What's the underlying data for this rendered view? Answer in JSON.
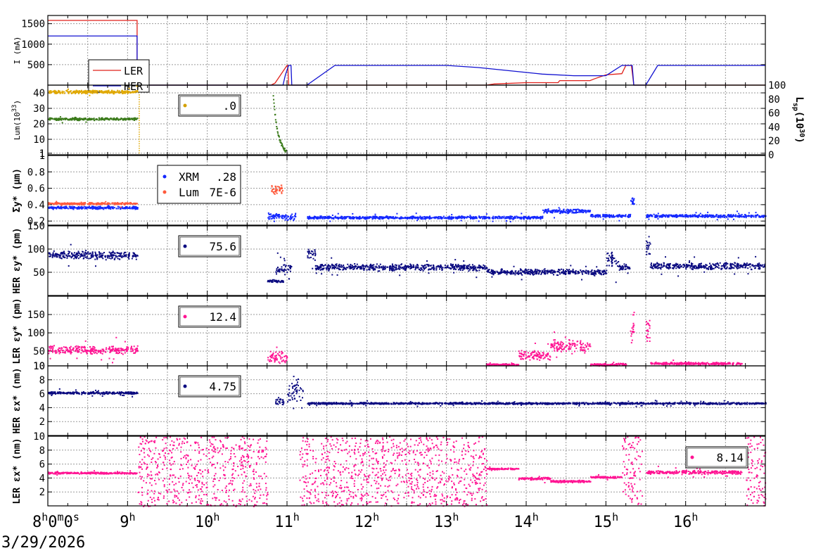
{
  "chart_data": {
    "type": "line",
    "date": "3/29/2026",
    "x_tick_labels": [
      {
        "h": 8,
        "label": "8",
        "sup": "h",
        "tail": "0",
        "tail_sup": "m",
        "tail2": "0",
        "tail2_sup": "s"
      },
      {
        "h": 9,
        "label": "9",
        "sup": "h"
      },
      {
        "h": 10,
        "label": "10",
        "sup": "h"
      },
      {
        "h": 11,
        "label": "11",
        "sup": "h"
      },
      {
        "h": 12,
        "label": "12",
        "sup": "h"
      },
      {
        "h": 13,
        "label": "13",
        "sup": "h"
      },
      {
        "h": 14,
        "label": "14",
        "sup": "h"
      },
      {
        "h": 15,
        "label": "15",
        "sup": "h"
      },
      {
        "h": 16,
        "label": "16",
        "sup": "h"
      }
    ],
    "xlim": [
      8.0,
      17.0
    ],
    "panels": [
      {
        "id": "current",
        "ylabel": "I (mA)",
        "ylim": [
          0,
          1700
        ],
        "yticks": [
          500,
          1000,
          1500
        ],
        "legend": [
          "LER",
          "HER"
        ],
        "series": [
          {
            "name": "LER",
            "color": "#e0201a",
            "style": "line",
            "points": [
              [
                8.0,
                1580
              ],
              [
                9.12,
                1580
              ],
              [
                9.12,
                300
              ],
              [
                9.14,
                0
              ],
              [
                10.8,
                0
              ],
              [
                10.85,
                50
              ],
              [
                11.0,
                480
              ],
              [
                11.01,
                480
              ],
              [
                11.02,
                0
              ],
              [
                13.5,
                0
              ],
              [
                13.6,
                30
              ],
              [
                14.0,
                60
              ],
              [
                14.4,
                60
              ],
              [
                14.42,
                110
              ],
              [
                14.8,
                110
              ],
              [
                14.85,
                150
              ],
              [
                15.0,
                250
              ],
              [
                15.2,
                280
              ],
              [
                15.25,
                480
              ],
              [
                15.32,
                480
              ],
              [
                15.35,
                0
              ],
              [
                16.0,
                0
              ],
              [
                17.0,
                0
              ]
            ]
          },
          {
            "name": "HER",
            "color": "#1010d0",
            "style": "line",
            "points": [
              [
                8.0,
                1200
              ],
              [
                9.12,
                1200
              ],
              [
                9.12,
                150
              ],
              [
                9.14,
                0
              ],
              [
                10.95,
                0
              ],
              [
                10.98,
                250
              ],
              [
                11.02,
                480
              ],
              [
                11.05,
                480
              ],
              [
                11.06,
                0
              ],
              [
                11.25,
                0
              ],
              [
                11.6,
                480
              ],
              [
                13.0,
                480
              ],
              [
                13.4,
                430
              ],
              [
                13.8,
                350
              ],
              [
                14.2,
                270
              ],
              [
                14.6,
                230
              ],
              [
                15.0,
                230
              ],
              [
                15.2,
                480
              ],
              [
                15.33,
                480
              ],
              [
                15.35,
                0
              ],
              [
                15.5,
                0
              ],
              [
                15.65,
                480
              ],
              [
                17.0,
                480
              ]
            ]
          }
        ]
      },
      {
        "id": "luminosity",
        "ylabel": "Lum(10",
        "ylabel_sup": "33",
        "ylabel_tail": ")",
        "ylim": [
          0,
          45
        ],
        "yticks": [
          1,
          10,
          20,
          30,
          40
        ],
        "right_axis": {
          "label": "L",
          "label_sub": "sp",
          "label_tail": "(10",
          "label_sup": "30",
          "label_tail2": ")",
          "ylim": [
            0,
            100
          ],
          "yticks": [
            0,
            20,
            40,
            60,
            80,
            100
          ]
        },
        "legend_value": ".0",
        "legend_color": "#d4a000",
        "series": [
          {
            "name": "lum_orange",
            "color": "#e0a800",
            "style": "band",
            "x": [
              8.0,
              9.12
            ],
            "y": 41,
            "spread": 1.2
          },
          {
            "name": "lum_green",
            "color": "#3a7a1a",
            "style": "band",
            "x": [
              8.0,
              9.12
            ],
            "y": 23.5,
            "spread": 0.9
          },
          {
            "name": "lum_drop",
            "color": "#e0a800",
            "style": "vdots",
            "x": 9.14,
            "y": [
              0,
              40
            ]
          },
          {
            "name": "lum_green_b",
            "color": "#3a7a1a",
            "style": "decay",
            "x": [
              10.82,
              10.98
            ],
            "y": [
              38,
              3
            ]
          }
        ]
      },
      {
        "id": "sigma",
        "ylabel": "Σy* (μm)",
        "ylim": [
          0.15,
          1.0
        ],
        "yticks": [
          0.2,
          0.4,
          0.6,
          0.8,
          1
        ],
        "legend": [
          {
            "label": "XRM",
            "value": ".28",
            "color": "#1428ff"
          },
          {
            "label": "Lum",
            "value": "7E-6",
            "color": "#ff5a3c"
          }
        ],
        "series": [
          {
            "name": "XRM",
            "color": "#1428ff",
            "style": "band",
            "segments": [
              [
                8.0,
                9.12,
                0.37,
                0.02
              ],
              [
                10.75,
                11.1,
                0.26,
                0.05
              ],
              [
                11.25,
                14.2,
                0.25,
                0.02
              ],
              [
                14.2,
                14.8,
                0.33,
                0.03
              ],
              [
                14.8,
                15.3,
                0.27,
                0.02
              ],
              [
                15.3,
                15.35,
                0.45,
                0.05
              ],
              [
                15.5,
                17.0,
                0.27,
                0.02
              ]
            ]
          },
          {
            "name": "Lum",
            "color": "#ff5a3c",
            "style": "band",
            "segments": [
              [
                8.0,
                9.12,
                0.42,
                0.015
              ],
              [
                10.8,
                10.95,
                0.6,
                0.07
              ]
            ]
          }
        ]
      },
      {
        "id": "her_eps_y",
        "ylabel": "HER εy* (pm)",
        "ylim": [
          0,
          150
        ],
        "yticks": [
          50,
          100,
          150
        ],
        "legend_value": "75.6",
        "legend_color": "#0a0a80",
        "series": [
          {
            "name": "HER_eps_y",
            "color": "#0a0a80",
            "style": "band",
            "segments": [
              [
                8.0,
                9.12,
                88,
                10
              ],
              [
                10.75,
                10.95,
                32,
                4
              ],
              [
                10.85,
                11.05,
                58,
                12
              ],
              [
                11.25,
                11.35,
                90,
                14
              ],
              [
                11.35,
                13.5,
                62,
                8
              ],
              [
                13.5,
                15.0,
                52,
                7
              ],
              [
                15.0,
                15.15,
                80,
                20
              ],
              [
                15.15,
                15.3,
                62,
                8
              ],
              [
                15.5,
                15.55,
                105,
                25
              ],
              [
                15.55,
                17.0,
                65,
                8
              ]
            ]
          }
        ]
      },
      {
        "id": "ler_eps_y",
        "ylabel": "LER εy* (pm)",
        "ylim": [
          10,
          200
        ],
        "yticks": [
          10,
          50,
          100,
          150
        ],
        "legend_value": "12.4",
        "legend_color": "#ff1493",
        "series": [
          {
            "name": "LER_eps_y",
            "color": "#ff1493",
            "style": "band",
            "segments": [
              [
                8.0,
                9.12,
                55,
                12
              ],
              [
                10.75,
                11.0,
                35,
                18
              ],
              [
                13.5,
                13.9,
                15,
                3
              ],
              [
                13.9,
                14.3,
                40,
                15
              ],
              [
                14.3,
                14.8,
                65,
                22
              ],
              [
                14.8,
                15.25,
                15,
                4
              ],
              [
                15.3,
                15.35,
                120,
                50
              ],
              [
                15.5,
                15.55,
                110,
                40
              ],
              [
                15.55,
                16.7,
                18,
                4
              ]
            ]
          }
        ]
      },
      {
        "id": "her_eps_x",
        "ylabel": "HER εx* (nm)",
        "ylim": [
          0,
          10
        ],
        "yticks": [
          2,
          4,
          6,
          8,
          10
        ],
        "legend_value": "4.75",
        "legend_color": "#0a0a80",
        "series": [
          {
            "name": "HER_eps_x",
            "color": "#0a0a80",
            "style": "band",
            "segments": [
              [
                8.0,
                9.12,
                6.2,
                0.2
              ],
              [
                10.85,
                10.95,
                5.0,
                0.6
              ],
              [
                11.0,
                11.2,
                6.5,
                2.5
              ],
              [
                11.25,
                17.0,
                4.7,
                0.15
              ]
            ]
          }
        ]
      },
      {
        "id": "ler_eps_x",
        "ylabel": "LER εx* (nm)",
        "ylim": [
          0,
          10
        ],
        "yticks": [
          2,
          4,
          6,
          8,
          10
        ],
        "legend_value": "8.14",
        "legend_color": "#ff1493",
        "series": [
          {
            "name": "LER_eps_x",
            "color": "#ff1493",
            "style": "band",
            "segments": [
              [
                8.0,
                9.12,
                4.8,
                0.15
              ],
              [
                13.5,
                13.9,
                5.4,
                0.15
              ],
              [
                13.9,
                14.3,
                4.0,
                0.2
              ],
              [
                14.3,
                14.8,
                3.6,
                0.2
              ],
              [
                14.8,
                15.2,
                4.2,
                0.15
              ],
              [
                15.5,
                16.7,
                4.9,
                0.3
              ]
            ]
          },
          {
            "name": "LER_eps_x_noise",
            "color": "#ff1493",
            "style": "scatter",
            "segments": [
              [
                9.12,
                10.75
              ],
              [
                11.15,
                13.5
              ],
              [
                15.2,
                15.3
              ],
              [
                15.3,
                15.45
              ],
              [
                16.75,
                17.0
              ]
            ]
          }
        ]
      }
    ]
  }
}
